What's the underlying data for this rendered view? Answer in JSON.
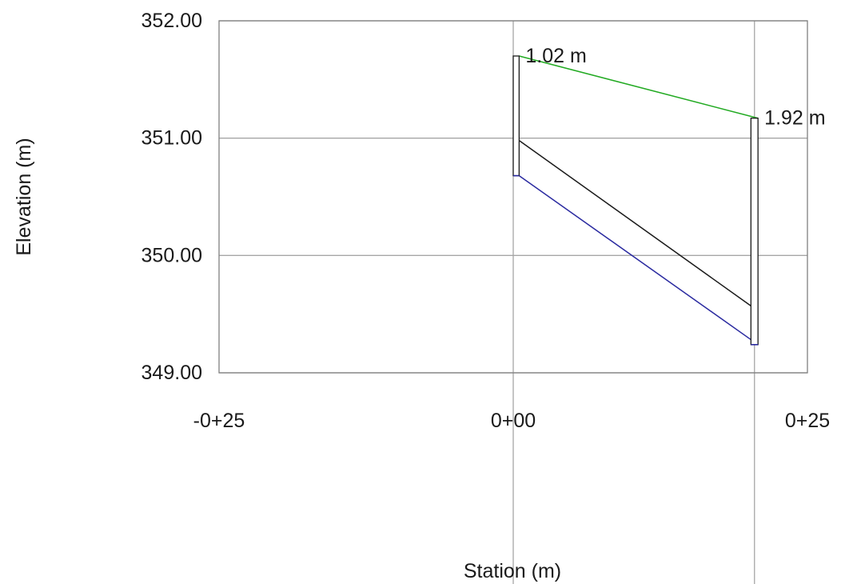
{
  "chart_data": {
    "type": "line",
    "xlabel": "Station (m)",
    "ylabel": "Elevation (m)",
    "xlim": [
      -25,
      25
    ],
    "ylim": [
      349.0,
      352.0
    ],
    "x_ticks": [
      {
        "value": -25,
        "label": "-0+25"
      },
      {
        "value": 0,
        "label": "0+00"
      },
      {
        "value": 25,
        "label": "0+25"
      }
    ],
    "y_ticks": [
      {
        "value": 352.0,
        "label": "352.00"
      },
      {
        "value": 351.0,
        "label": "351.00"
      },
      {
        "value": 350.0,
        "label": "350.00"
      },
      {
        "value": 349.0,
        "label": "349.00"
      }
    ],
    "grid": true,
    "series": [
      {
        "color": "#22aa22",
        "x": [
          0.5,
          20.8
        ],
        "y": [
          351.7,
          351.17
        ]
      },
      {
        "color": "#1a1a1a",
        "x": [
          0.5,
          20.2
        ],
        "y": [
          350.98,
          349.57
        ]
      },
      {
        "color": "#2a2aa0",
        "x": [
          0.5,
          20.8
        ],
        "y": [
          350.68,
          349.24
        ]
      }
    ],
    "structures": [
      {
        "x_left": 0.0,
        "x_right": 0.5,
        "y_bottom": 350.68,
        "y_top": 351.7,
        "color": "#2a2aa0"
      },
      {
        "x_left": 20.2,
        "x_right": 20.8,
        "y_bottom": 349.24,
        "y_top": 351.17,
        "color": "#2a2aa0"
      }
    ],
    "annotations": [
      {
        "text": "1.02 m",
        "x": 0.5,
        "y": 351.7
      },
      {
        "text": "1.92 m",
        "x": 20.8,
        "y": 351.17
      }
    ]
  }
}
